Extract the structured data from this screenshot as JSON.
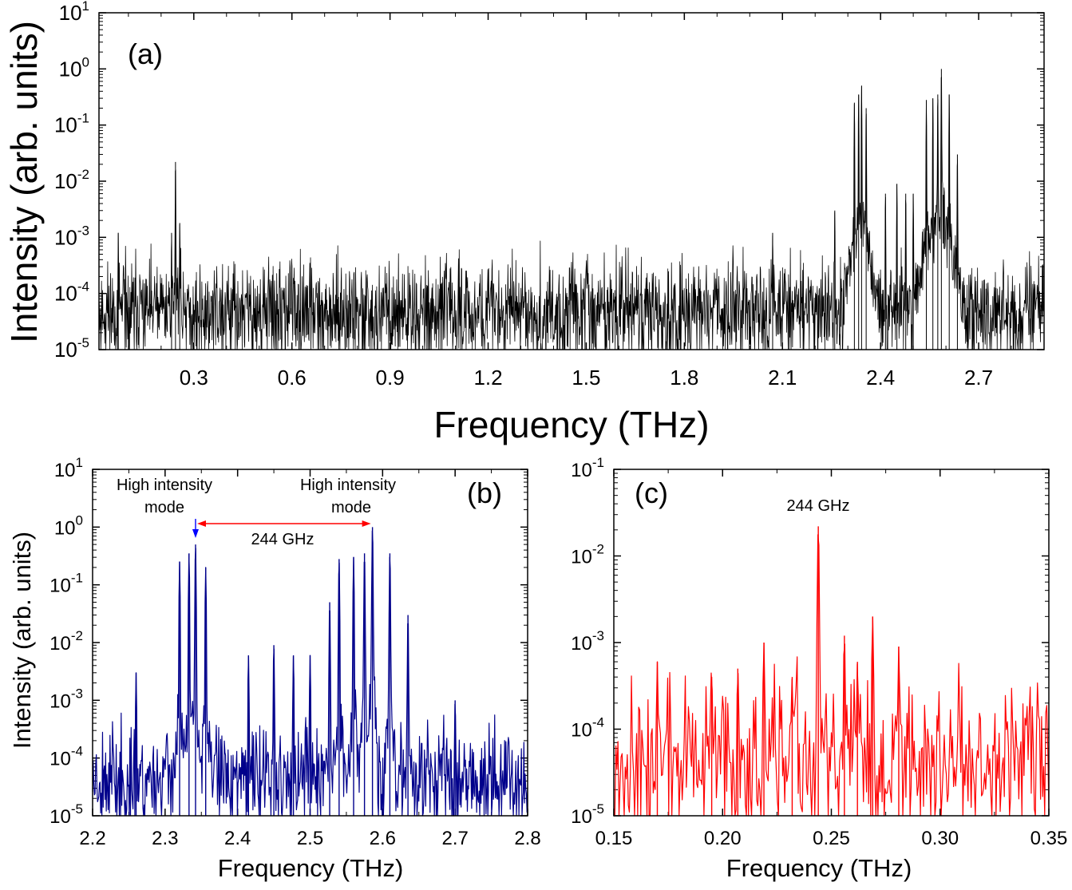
{
  "chart_data": [
    {
      "id": "a",
      "type": "line",
      "panel_label": "(a)",
      "xlabel": "Frequency (THz)",
      "ylabel": "Intensity (arb. units)",
      "xlim": [
        0.01,
        2.9
      ],
      "ylim_exponents": [
        -5,
        1
      ],
      "y_scale": "log",
      "xticks": [
        "0.3",
        "0.6",
        "0.9",
        "1.2",
        "1.5",
        "1.8",
        "2.1",
        "2.4",
        "2.7"
      ],
      "xtick_values": [
        0.3,
        0.6,
        0.9,
        1.2,
        1.5,
        1.8,
        2.1,
        2.4,
        2.7
      ],
      "yticks": [
        {
          "base": "10",
          "exp": "-5"
        },
        {
          "base": "10",
          "exp": "-4"
        },
        {
          "base": "10",
          "exp": "-3"
        },
        {
          "base": "10",
          "exp": "-2"
        },
        {
          "base": "10",
          "exp": "-1"
        },
        {
          "base": "10",
          "exp": "0"
        },
        {
          "base": "10",
          "exp": "1"
        }
      ],
      "ytick_exponents": [
        -5,
        -4,
        -3,
        -2,
        -1,
        0,
        1
      ],
      "series": [
        {
          "color": "#000000",
          "noise_floor": 5e-05,
          "peaks": [
            {
              "x": 0.244,
              "y": 0.022
            },
            {
              "x": 0.257,
              "y": 0.0018
            },
            {
              "x": 0.232,
              "y": 0.0012
            },
            {
              "x": 0.069,
              "y": 0.0012
            },
            {
              "x": 2.07,
              "y": 0.0012
            },
            {
              "x": 2.32,
              "y": 0.25
            },
            {
              "x": 2.333,
              "y": 0.35
            },
            {
              "x": 2.342,
              "y": 0.5
            },
            {
              "x": 2.356,
              "y": 0.2
            },
            {
              "x": 2.54,
              "y": 0.28
            },
            {
              "x": 2.56,
              "y": 0.3
            },
            {
              "x": 2.575,
              "y": 0.35
            },
            {
              "x": 2.586,
              "y": 1.0
            },
            {
              "x": 2.61,
              "y": 0.35
            },
            {
              "x": 2.635,
              "y": 0.03
            },
            {
              "x": 2.26,
              "y": 0.003
            },
            {
              "x": 2.415,
              "y": 0.006
            },
            {
              "x": 2.45,
              "y": 0.009
            },
            {
              "x": 2.477,
              "y": 0.006
            },
            {
              "x": 2.5,
              "y": 0.006
            }
          ]
        }
      ]
    },
    {
      "id": "b",
      "type": "line",
      "panel_label": "(b)",
      "xlabel": "Frequency (THz)",
      "ylabel": "Intensity (arb. units)",
      "xlim": [
        2.2,
        2.8
      ],
      "ylim_exponents": [
        -5,
        1
      ],
      "y_scale": "log",
      "xticks": [
        "2.2",
        "2.3",
        "2.4",
        "2.5",
        "2.6",
        "2.7",
        "2.8"
      ],
      "xtick_values": [
        2.2,
        2.3,
        2.4,
        2.5,
        2.6,
        2.7,
        2.8
      ],
      "yticks": [
        {
          "base": "10",
          "exp": "-5"
        },
        {
          "base": "10",
          "exp": "-4"
        },
        {
          "base": "10",
          "exp": "-3"
        },
        {
          "base": "10",
          "exp": "-2"
        },
        {
          "base": "10",
          "exp": "-1"
        },
        {
          "base": "10",
          "exp": "0"
        },
        {
          "base": "10",
          "exp": "1"
        }
      ],
      "ytick_exponents": [
        -5,
        -4,
        -3,
        -2,
        -1,
        0,
        1
      ],
      "series": [
        {
          "color": "#00008b",
          "noise_floor": 5e-05,
          "peaks": [
            {
              "x": 2.26,
              "y": 0.003
            },
            {
              "x": 2.32,
              "y": 0.25
            },
            {
              "x": 2.333,
              "y": 0.35
            },
            {
              "x": 2.342,
              "y": 0.5
            },
            {
              "x": 2.356,
              "y": 0.2
            },
            {
              "x": 2.415,
              "y": 0.006
            },
            {
              "x": 2.45,
              "y": 0.009
            },
            {
              "x": 2.477,
              "y": 0.006
            },
            {
              "x": 2.5,
              "y": 0.006
            },
            {
              "x": 2.527,
              "y": 0.05
            },
            {
              "x": 2.54,
              "y": 0.28
            },
            {
              "x": 2.56,
              "y": 0.3
            },
            {
              "x": 2.575,
              "y": 0.35
            },
            {
              "x": 2.586,
              "y": 1.0
            },
            {
              "x": 2.61,
              "y": 0.35
            },
            {
              "x": 2.635,
              "y": 0.03
            },
            {
              "x": 2.7,
              "y": 0.001
            }
          ]
        }
      ],
      "annotations": {
        "left_mode_line1": "High intensity",
        "left_mode_line2": "mode",
        "right_mode_line1": "High intensity",
        "right_mode_line2": "mode",
        "spacing": "244 GHz",
        "arrow_from_x": 2.342,
        "arrow_to_x": 2.586,
        "blue_arrow_color": "#0000ff",
        "red_arrow_color": "#ff0000"
      }
    },
    {
      "id": "c",
      "type": "line",
      "panel_label": "(c)",
      "xlabel": "Frequency (THz)",
      "ylabel": "",
      "xlim": [
        0.15,
        0.35
      ],
      "ylim_exponents": [
        -5,
        -1
      ],
      "y_scale": "log",
      "xticks": [
        "0.15",
        "0.20",
        "0.25",
        "0.30",
        "0.35"
      ],
      "xtick_values": [
        0.15,
        0.2,
        0.25,
        0.3,
        0.35
      ],
      "yticks": [
        {
          "base": "10",
          "exp": "-5"
        },
        {
          "base": "10",
          "exp": "-4"
        },
        {
          "base": "10",
          "exp": "-3"
        },
        {
          "base": "10",
          "exp": "-2"
        },
        {
          "base": "10",
          "exp": "-1"
        }
      ],
      "ytick_exponents": [
        -5,
        -4,
        -3,
        -2,
        -1
      ],
      "series": [
        {
          "color": "#ff0000",
          "noise_floor": 5e-05,
          "peaks": [
            {
              "x": 0.244,
              "y": 0.022
            },
            {
              "x": 0.256,
              "y": 0.0012
            },
            {
              "x": 0.269,
              "y": 0.002
            },
            {
              "x": 0.281,
              "y": 0.0009
            },
            {
              "x": 0.219,
              "y": 0.001
            },
            {
              "x": 0.207,
              "y": 0.0005
            },
            {
              "x": 0.195,
              "y": 0.0004
            },
            {
              "x": 0.17,
              "y": 0.0006
            },
            {
              "x": 0.262,
              "y": 0.0006
            },
            {
              "x": 0.232,
              "y": 0.0004
            }
          ]
        }
      ],
      "annotations": {
        "peak_label": "244 GHz"
      }
    }
  ]
}
